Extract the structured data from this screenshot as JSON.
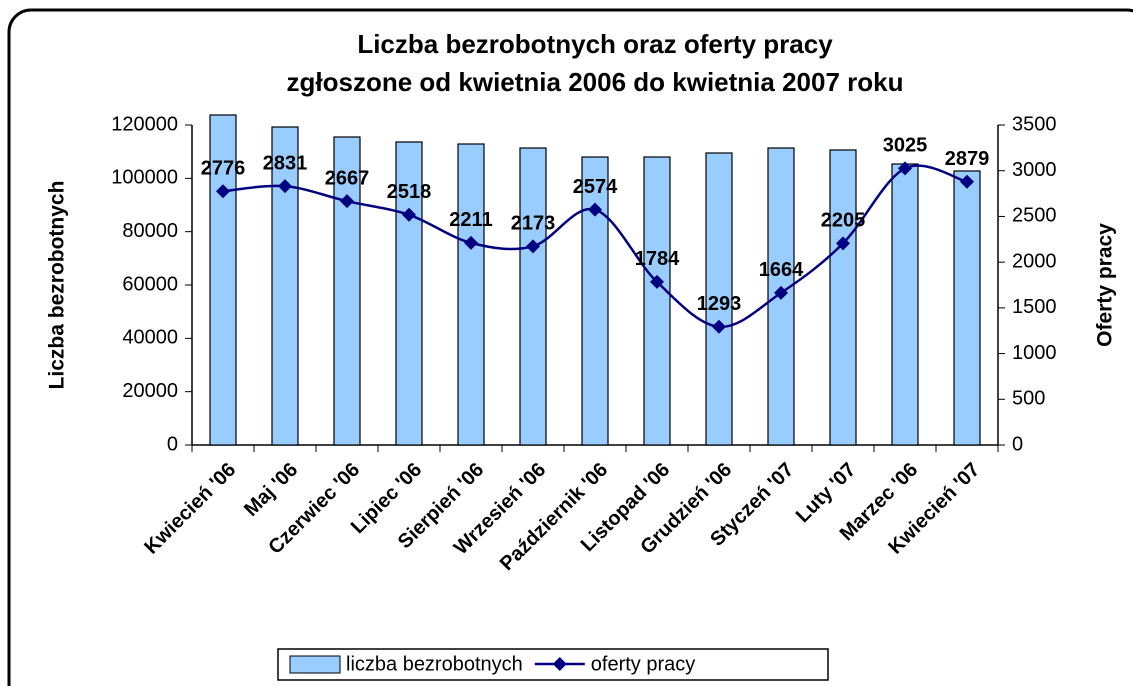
{
  "chart_data": {
    "type": "bar_line",
    "title": [
      "Liczba bezrobotnych oraz oferty pracy",
      "zgłoszone od kwietnia 2006 do kwietnia 2007 roku"
    ],
    "y_label": "Liczba bezrobotnych",
    "y2_label": "Oferty pracy",
    "categories": [
      "Kwiecień '06",
      "Maj '06",
      "Czerwiec '06",
      "Lipiec '06",
      "Sierpień '06",
      "Wrzesień '06",
      "Październik '06",
      "Listopad '06",
      "Grudzień '06",
      "Styczeń '07",
      "Luty '07",
      "Marzec '06",
      "Kwiecień '07"
    ],
    "series": [
      {
        "name": "liczba bezrobotnych",
        "type": "bar",
        "color": "#99ccff",
        "values": [
          123750,
          119250,
          115500,
          113625,
          112875,
          111375,
          108000,
          108000,
          109500,
          111375,
          110625,
          105375,
          102750
        ]
      },
      {
        "name": "oferty pracy",
        "type": "line",
        "axis": "y2",
        "color": "#000080",
        "values": [
          2776,
          2831,
          2667,
          2518,
          2211,
          2173,
          2574,
          1784,
          1293,
          1664,
          2205,
          3025,
          2879
        ]
      }
    ],
    "ylim": [
      0,
      120000
    ],
    "yticks": [
      0,
      20000,
      40000,
      60000,
      80000,
      100000,
      120000
    ],
    "y2lim": [
      0,
      3500
    ],
    "y2ticks": [
      0,
      500,
      1000,
      1500,
      2000,
      2500,
      3000,
      3500
    ],
    "legend": "bottom"
  }
}
